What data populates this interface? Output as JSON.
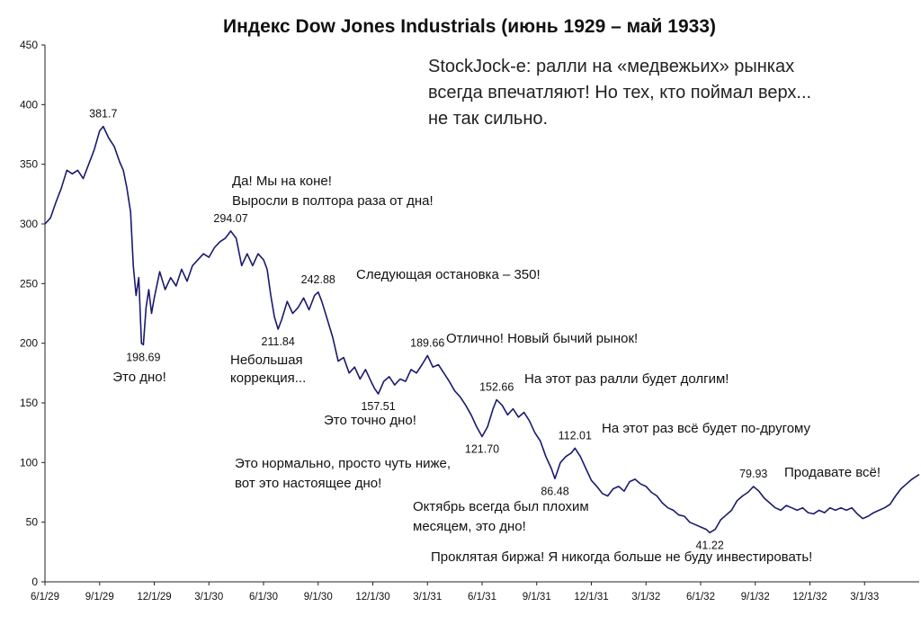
{
  "chart_data": {
    "type": "line",
    "title": "Индекс Dow Jones Industrials (июнь 1929 – май 1933)",
    "xlabel": "",
    "ylabel": "",
    "ylim": [
      0,
      450
    ],
    "yticks": [
      0,
      50,
      100,
      150,
      200,
      250,
      300,
      350,
      400,
      450
    ],
    "x_range_months": [
      0,
      48
    ],
    "x_ticks": [
      {
        "label": "6/1/29",
        "month": 0
      },
      {
        "label": "9/1/29",
        "month": 3
      },
      {
        "label": "12/1/29",
        "month": 6
      },
      {
        "label": "3/1/30",
        "month": 9
      },
      {
        "label": "6/1/30",
        "month": 12
      },
      {
        "label": "9/1/30",
        "month": 15
      },
      {
        "label": "12/1/30",
        "month": 18
      },
      {
        "label": "3/1/31",
        "month": 21
      },
      {
        "label": "6/1/31",
        "month": 24
      },
      {
        "label": "9/1/31",
        "month": 27
      },
      {
        "label": "12/1/31",
        "month": 30
      },
      {
        "label": "3/1/32",
        "month": 33
      },
      {
        "label": "6/1/32",
        "month": 36
      },
      {
        "label": "9/1/32",
        "month": 39
      },
      {
        "label": "12/1/32",
        "month": 42
      },
      {
        "label": "3/1/33",
        "month": 45
      }
    ],
    "series": [
      {
        "name": "Dow Jones Industrials",
        "color": "#1a1a6e",
        "points": [
          [
            0,
            300
          ],
          [
            0.3,
            305
          ],
          [
            0.6,
            318
          ],
          [
            0.9,
            330
          ],
          [
            1.2,
            345
          ],
          [
            1.5,
            342
          ],
          [
            1.8,
            345
          ],
          [
            2.1,
            338
          ],
          [
            2.4,
            350
          ],
          [
            2.7,
            362
          ],
          [
            3.0,
            378
          ],
          [
            3.2,
            381.7
          ],
          [
            3.5,
            372
          ],
          [
            3.8,
            365
          ],
          [
            4.1,
            352
          ],
          [
            4.3,
            345
          ],
          [
            4.5,
            330
          ],
          [
            4.7,
            310
          ],
          [
            4.85,
            265
          ],
          [
            5.0,
            240
          ],
          [
            5.15,
            255
          ],
          [
            5.3,
            200
          ],
          [
            5.4,
            198.69
          ],
          [
            5.55,
            230
          ],
          [
            5.7,
            245
          ],
          [
            5.85,
            225
          ],
          [
            6.0,
            238
          ],
          [
            6.3,
            260
          ],
          [
            6.6,
            245
          ],
          [
            6.9,
            255
          ],
          [
            7.2,
            248
          ],
          [
            7.5,
            262
          ],
          [
            7.8,
            252
          ],
          [
            8.1,
            265
          ],
          [
            8.4,
            270
          ],
          [
            8.7,
            275
          ],
          [
            9.0,
            272
          ],
          [
            9.3,
            280
          ],
          [
            9.6,
            285
          ],
          [
            9.9,
            288
          ],
          [
            10.2,
            294.07
          ],
          [
            10.5,
            288
          ],
          [
            10.8,
            265
          ],
          [
            11.1,
            275
          ],
          [
            11.4,
            265
          ],
          [
            11.7,
            275
          ],
          [
            12.0,
            270
          ],
          [
            12.2,
            262
          ],
          [
            12.4,
            240
          ],
          [
            12.6,
            222
          ],
          [
            12.8,
            211.84
          ],
          [
            13.0,
            220
          ],
          [
            13.3,
            235
          ],
          [
            13.6,
            225
          ],
          [
            13.9,
            230
          ],
          [
            14.2,
            238
          ],
          [
            14.5,
            228
          ],
          [
            14.8,
            240
          ],
          [
            15.0,
            242.88
          ],
          [
            15.2,
            235
          ],
          [
            15.5,
            220
          ],
          [
            15.8,
            205
          ],
          [
            16.1,
            185
          ],
          [
            16.4,
            188
          ],
          [
            16.7,
            175
          ],
          [
            17.0,
            180
          ],
          [
            17.3,
            170
          ],
          [
            17.6,
            178
          ],
          [
            17.9,
            168
          ],
          [
            18.1,
            162
          ],
          [
            18.3,
            157.51
          ],
          [
            18.6,
            168
          ],
          [
            18.9,
            172
          ],
          [
            19.2,
            165
          ],
          [
            19.5,
            170
          ],
          [
            19.8,
            168
          ],
          [
            20.1,
            178
          ],
          [
            20.4,
            175
          ],
          [
            20.7,
            182
          ],
          [
            21.0,
            189.66
          ],
          [
            21.3,
            180
          ],
          [
            21.6,
            182
          ],
          [
            21.9,
            175
          ],
          [
            22.2,
            168
          ],
          [
            22.5,
            160
          ],
          [
            22.8,
            155
          ],
          [
            23.1,
            148
          ],
          [
            23.4,
            140
          ],
          [
            23.7,
            130
          ],
          [
            24.0,
            121.7
          ],
          [
            24.3,
            130
          ],
          [
            24.6,
            145
          ],
          [
            24.8,
            152.66
          ],
          [
            25.1,
            148
          ],
          [
            25.4,
            140
          ],
          [
            25.7,
            145
          ],
          [
            26.0,
            138
          ],
          [
            26.3,
            142
          ],
          [
            26.6,
            135
          ],
          [
            26.9,
            125
          ],
          [
            27.2,
            118
          ],
          [
            27.5,
            105
          ],
          [
            27.8,
            95
          ],
          [
            28.0,
            86.48
          ],
          [
            28.3,
            100
          ],
          [
            28.6,
            105
          ],
          [
            28.9,
            108
          ],
          [
            29.1,
            112.01
          ],
          [
            29.4,
            105
          ],
          [
            29.7,
            95
          ],
          [
            30.0,
            85
          ],
          [
            30.3,
            80
          ],
          [
            30.6,
            74
          ],
          [
            30.9,
            72
          ],
          [
            31.2,
            78
          ],
          [
            31.5,
            80
          ],
          [
            31.8,
            76
          ],
          [
            32.1,
            84
          ],
          [
            32.4,
            86
          ],
          [
            32.7,
            82
          ],
          [
            33.0,
            80
          ],
          [
            33.3,
            75
          ],
          [
            33.6,
            72
          ],
          [
            33.9,
            66
          ],
          [
            34.2,
            62
          ],
          [
            34.5,
            60
          ],
          [
            34.8,
            56
          ],
          [
            35.1,
            55
          ],
          [
            35.4,
            50
          ],
          [
            35.7,
            48
          ],
          [
            36.0,
            46
          ],
          [
            36.3,
            44
          ],
          [
            36.5,
            41.22
          ],
          [
            36.8,
            44
          ],
          [
            37.1,
            52
          ],
          [
            37.4,
            56
          ],
          [
            37.7,
            60
          ],
          [
            38.0,
            68
          ],
          [
            38.3,
            72
          ],
          [
            38.6,
            75
          ],
          [
            38.9,
            79.93
          ],
          [
            39.2,
            76
          ],
          [
            39.5,
            70
          ],
          [
            39.8,
            66
          ],
          [
            40.1,
            62
          ],
          [
            40.4,
            60
          ],
          [
            40.7,
            64
          ],
          [
            41.0,
            62
          ],
          [
            41.3,
            60
          ],
          [
            41.6,
            62
          ],
          [
            41.9,
            58
          ],
          [
            42.2,
            57
          ],
          [
            42.5,
            60
          ],
          [
            42.8,
            58
          ],
          [
            43.1,
            62
          ],
          [
            43.4,
            60
          ],
          [
            43.7,
            62
          ],
          [
            44.0,
            60
          ],
          [
            44.3,
            62
          ],
          [
            44.6,
            57
          ],
          [
            44.9,
            53
          ],
          [
            45.2,
            55
          ],
          [
            45.5,
            58
          ],
          [
            45.8,
            60
          ],
          [
            46.1,
            62
          ],
          [
            46.4,
            65
          ],
          [
            46.7,
            72
          ],
          [
            47.0,
            78
          ],
          [
            47.3,
            82
          ],
          [
            47.6,
            86
          ],
          [
            48.0,
            90
          ]
        ]
      }
    ],
    "value_labels": [
      {
        "text": "381.7",
        "x": 3.2,
        "y": 381.7,
        "pos": "above"
      },
      {
        "text": "198.69",
        "x": 5.4,
        "y": 198.69,
        "pos": "below"
      },
      {
        "text": "294.07",
        "x": 10.2,
        "y": 294.07,
        "pos": "above"
      },
      {
        "text": "211.84",
        "x": 12.8,
        "y": 211.84,
        "pos": "below"
      },
      {
        "text": "242.88",
        "x": 15.0,
        "y": 242.88,
        "pos": "above"
      },
      {
        "text": "157.51",
        "x": 18.3,
        "y": 157.51,
        "pos": "below"
      },
      {
        "text": "189.66",
        "x": 21.0,
        "y": 189.66,
        "pos": "above"
      },
      {
        "text": "121.70",
        "x": 24.0,
        "y": 121.7,
        "pos": "below"
      },
      {
        "text": "152.66",
        "x": 24.8,
        "y": 152.66,
        "pos": "above"
      },
      {
        "text": "86.48",
        "x": 28.0,
        "y": 86.48,
        "pos": "below"
      },
      {
        "text": "112.01",
        "x": 29.1,
        "y": 112.01,
        "pos": "above"
      },
      {
        "text": "41.22",
        "x": 36.5,
        "y": 41.22,
        "pos": "below"
      },
      {
        "text": "79.93",
        "x": 38.9,
        "y": 79.93,
        "pos": "above"
      }
    ],
    "annotations": {
      "quote": [
        "StockJock-е: ралли на «медвежьих» рынках",
        "всегда впечатляют! Но тех, кто поймал верх...",
        "не так сильно."
      ],
      "bottom1": "Это дно!",
      "top2": [
        "Да! Мы на коне!",
        "Выросли в полтора раза от дна!"
      ],
      "bottom2": [
        "Небольшая",
        "коррекция..."
      ],
      "top3": "Следующая остановка – 350!",
      "bottom3": "Это точно дно!",
      "top4": "Отлично! Новый бычий рынок!",
      "bottom4": [
        "Это нормально, просто чуть ниже,",
        "вот это настоящее дно!"
      ],
      "top5": "На этот раз ралли будет долгим!",
      "bottom5": [
        "Октябрь всегда был плохим",
        "месяцем, это дно!"
      ],
      "top6": "На этот раз всё будет по-другому",
      "bottom6": "Проклятая биржа! Я никогда больше не буду инвестировать!",
      "top7": "Продавате всё!"
    }
  }
}
